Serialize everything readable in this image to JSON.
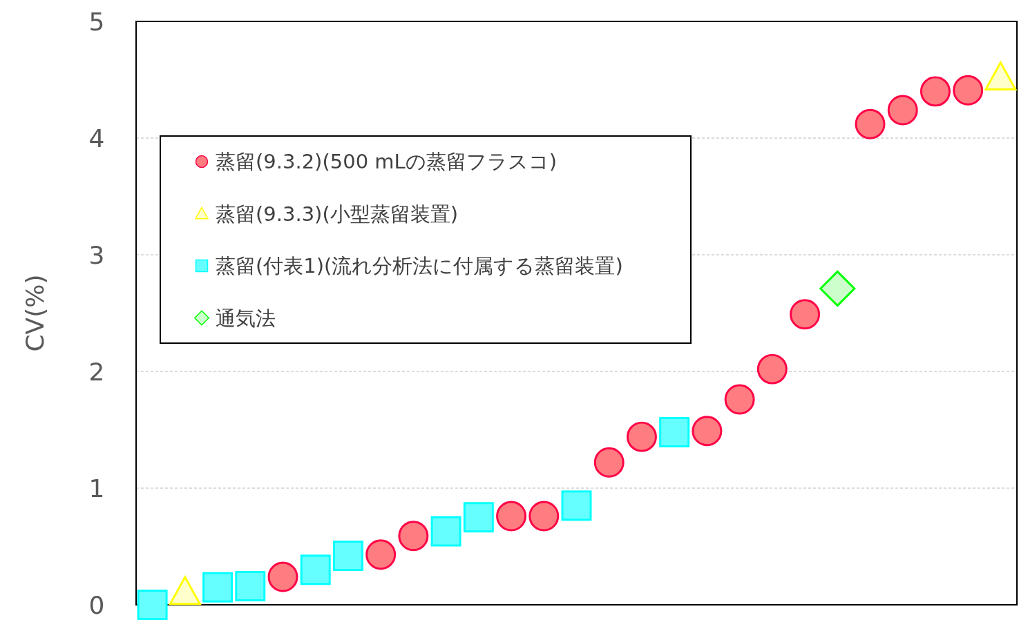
{
  "chart_data": {
    "type": "scatter",
    "ylabel": "CV(%)",
    "ylim": [
      0,
      5
    ],
    "yticks": [
      0,
      1,
      2,
      3,
      4,
      5
    ],
    "grid": "y",
    "legend": "top left",
    "tick_labels": "y",
    "categories": [
      null,
      null,
      null,
      null,
      null,
      null,
      null,
      null,
      null,
      null,
      null,
      null,
      null,
      null,
      null,
      null,
      null,
      null,
      null,
      null,
      null,
      null,
      null,
      null,
      null,
      null,
      null
    ],
    "series": [
      {
        "name": "蒸留(9.3.2)(500 mLの蒸留フラスコ)",
        "color": "#ff7c80",
        "marker": "circle",
        "values": [
          null,
          null,
          null,
          null,
          0.24,
          null,
          null,
          0.43,
          0.59,
          null,
          null,
          0.76,
          0.76,
          null,
          1.22,
          1.44,
          null,
          1.49,
          1.76,
          2.02,
          2.49,
          null,
          4.12,
          4.24,
          4.4,
          4.41,
          null
        ]
      },
      {
        "name": "蒸留(9.3.3)(小型蒸留装置)",
        "color": "#ffffcc",
        "marker": "triangle",
        "values": [
          null,
          0.11,
          null,
          null,
          null,
          null,
          null,
          null,
          null,
          null,
          null,
          null,
          null,
          null,
          null,
          null,
          null,
          null,
          null,
          null,
          null,
          null,
          null,
          null,
          null,
          null,
          4.52
        ]
      },
      {
        "name": "蒸留(付表1)(流れ分析法に付属する蒸留装置)",
        "color": "#66ffff",
        "marker": "square",
        "values": [
          0.0,
          null,
          0.15,
          0.16,
          null,
          0.3,
          0.42,
          null,
          null,
          0.63,
          0.75,
          null,
          null,
          0.85,
          null,
          null,
          1.48,
          null,
          null,
          null,
          null,
          null,
          null,
          null,
          null,
          null,
          null
        ]
      },
      {
        "name": "通気法",
        "color": "#ccffcc",
        "marker": "diamond",
        "values": [
          null,
          null,
          null,
          null,
          null,
          null,
          null,
          null,
          null,
          null,
          null,
          null,
          null,
          null,
          null,
          null,
          null,
          null,
          null,
          null,
          null,
          2.71,
          null,
          null,
          null,
          null,
          null
        ]
      }
    ]
  }
}
